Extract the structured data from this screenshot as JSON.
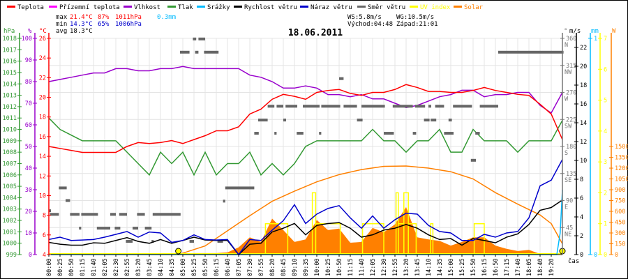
{
  "legend": [
    {
      "label": "Teplota",
      "color": "#ff0000"
    },
    {
      "label": "Přízemní teplota",
      "color": "#ff00ff"
    },
    {
      "label": "Vlhkost",
      "color": "#9900cc"
    },
    {
      "label": "Tlak",
      "color": "#339933"
    },
    {
      "label": "Srážky",
      "color": "#00bbff"
    },
    {
      "label": "Rychlost větru",
      "color": "#000000"
    },
    {
      "label": "Náraz větru",
      "color": "#0000cc"
    },
    {
      "label": "Směr větru",
      "color": "#666666"
    },
    {
      "label": "UV index",
      "color": "#ffff00"
    },
    {
      "label": "Solar",
      "color": "#ff8000"
    }
  ],
  "stats": {
    "max_label": "max",
    "max_temp": "21.4°C",
    "max_hum": "87%",
    "max_press": "1011hPa",
    "max_rain": "0.3mm",
    "min_label": "min",
    "min_temp": "14.3°C",
    "min_hum": "65%",
    "min_press": "1006hPa",
    "avg_label": "avg",
    "avg_temp": "18.3°C",
    "ws": "WS:5.8m/s",
    "wg": "WG:10.5m/s",
    "sunrise": "Východ:04:48",
    "sunset": "Západ:21:01"
  },
  "chart_data": {
    "type": "line",
    "title": "18.06.2011",
    "xlabel": "čas",
    "x_ticks": [
      "00:00",
      "00:25",
      "00:50",
      "01:15",
      "01:40",
      "02:05",
      "02:30",
      "02:55",
      "03:20",
      "03:45",
      "04:10",
      "04:35",
      "05:00",
      "05:25",
      "05:50",
      "06:15",
      "06:40",
      "07:05",
      "07:30",
      "07:55",
      "08:20",
      "08:45",
      "09:10",
      "09:35",
      "10:00",
      "10:25",
      "10:50",
      "11:15",
      "11:40",
      "12:05",
      "12:30",
      "12:55",
      "13:20",
      "13:45",
      "14:10",
      "14:35",
      "15:00",
      "15:25",
      "15:50",
      "16:15",
      "16:50",
      "17:15",
      "17:40",
      "18:05",
      "18:40",
      "19:20"
    ],
    "grid": true,
    "axes": {
      "pressure": {
        "unit": "hPa",
        "range": [
          999,
          1018
        ],
        "ticks": [
          999,
          1000,
          1001,
          1002,
          1003,
          1004,
          1005,
          1006,
          1007,
          1008,
          1009,
          1010,
          1011,
          1012,
          1013,
          1014,
          1015,
          1016,
          1017,
          1018
        ]
      },
      "humidity": {
        "unit": "%",
        "range": [
          0,
          100
        ],
        "ticks": [
          0,
          10,
          20,
          30,
          40,
          50,
          60,
          70,
          80,
          90,
          100
        ]
      },
      "temperature": {
        "unit": "°C",
        "range": [
          4,
          26
        ],
        "ticks": [
          4,
          6,
          8,
          10,
          12,
          14,
          16,
          18,
          20,
          22,
          24,
          26
        ]
      },
      "direction": {
        "unit": "°",
        "range": [
          0,
          360
        ],
        "ticks": [
          {
            "value": 45,
            "label": "45",
            "dir": "NE"
          },
          {
            "value": 90,
            "label": "90",
            "dir": "E"
          },
          {
            "value": 135,
            "label": "135",
            "dir": "SE"
          },
          {
            "value": 180,
            "label": "180",
            "dir": "S"
          },
          {
            "value": 225,
            "label": "225",
            "dir": "SW"
          },
          {
            "value": 270,
            "label": "270",
            "dir": "W"
          },
          {
            "value": 315,
            "label": "315",
            "dir": "NW"
          },
          {
            "value": 360,
            "label": "360",
            "dir": "N"
          }
        ]
      },
      "wind": {
        "unit": "m/s",
        "range": [
          0,
          23
        ],
        "ticks": [
          0,
          2,
          4,
          6,
          8,
          10,
          12,
          14,
          16,
          18,
          20,
          22
        ]
      },
      "rain": {
        "unit": "mm",
        "range": [
          0,
          1
        ],
        "ticks": [
          0,
          1
        ]
      },
      "uv": {
        "unit": "",
        "range": [
          0,
          7
        ],
        "ticks": [
          0,
          1,
          2,
          3,
          4,
          5,
          6,
          7
        ]
      },
      "solar": {
        "unit": "W",
        "range": [
          0,
          1500
        ],
        "ticks": [
          0,
          150,
          300,
          450,
          600,
          750,
          900,
          1050,
          1200,
          1350,
          1500
        ]
      }
    },
    "series": {
      "temperature": [
        15.0,
        14.8,
        14.6,
        14.4,
        14.4,
        14.4,
        14.4,
        15.0,
        15.4,
        15.3,
        15.4,
        15.6,
        15.3,
        15.7,
        16.1,
        16.6,
        16.6,
        17.0,
        18.3,
        18.8,
        19.8,
        20.3,
        20.1,
        19.8,
        20.5,
        20.7,
        20.8,
        20.4,
        20.2,
        20.5,
        20.5,
        20.8,
        21.3,
        21.0,
        20.6,
        20.6,
        20.5,
        20.5,
        20.7,
        21.0,
        20.7,
        20.5,
        20.3,
        20.2,
        19.3,
        18.3,
        15.7
      ],
      "humidity": [
        80,
        81,
        82,
        83,
        84,
        84,
        86,
        86,
        85,
        85,
        86,
        86,
        87,
        86,
        86,
        86,
        86,
        86,
        83,
        82,
        80,
        77,
        77,
        78,
        77,
        74,
        74,
        73,
        74,
        72,
        72,
        70,
        68,
        69,
        71,
        73,
        74,
        76,
        76,
        73,
        74,
        74,
        75,
        75,
        69,
        65.5,
        75
      ],
      "pressure": [
        1011,
        1010,
        1009.5,
        1009,
        1009,
        1009,
        1009,
        1008,
        1007,
        1006,
        1008,
        1007,
        1008,
        1006,
        1008,
        1006,
        1007,
        1007,
        1008,
        1006,
        1007,
        1006,
        1007,
        1008.5,
        1009,
        1009,
        1009,
        1009,
        1009,
        1010,
        1009,
        1009,
        1008,
        1009,
        1009,
        1010,
        1008,
        1008,
        1010,
        1009,
        1009,
        1009,
        1008,
        1009,
        1009,
        1009,
        1010.8
      ],
      "wind_speed": [
        1.3,
        1.1,
        1.0,
        1.0,
        1.25,
        1.2,
        1.5,
        1.8,
        1.4,
        1.2,
        1.6,
        1.2,
        1.5,
        1.85,
        1.55,
        1.5,
        1.5,
        0,
        1.1,
        1.2,
        2.4,
        2.8,
        3.3,
        2.1,
        3.1,
        3.3,
        3.4,
        2.8,
        1.85,
        2.1,
        2.6,
        2.8,
        3.2,
        2.8,
        2.1,
        1.6,
        1.7,
        1.0,
        1.7,
        1.5,
        1.25,
        1.85,
        2.2,
        3.2,
        4.7,
        5.0,
        5.8
      ],
      "wind_gust": [
        1.6,
        1.85,
        1.5,
        1.55,
        1.6,
        1.85,
        2.15,
        2.45,
        1.85,
        2.4,
        2.3,
        1.3,
        1.5,
        2.1,
        1.6,
        1.55,
        1.6,
        0,
        1.6,
        1.5,
        2.6,
        3.6,
        5.3,
        3.3,
        4.3,
        4.9,
        5.2,
        3.9,
        2.8,
        4.1,
        2.8,
        3.7,
        4.4,
        4.3,
        3.1,
        2.45,
        2.3,
        1.5,
        1.5,
        2.15,
        1.85,
        2.3,
        2.45,
        3.9,
        7.3,
        7.9,
        10.1
      ],
      "solar": [
        0,
        0,
        0,
        0,
        0,
        0,
        0,
        0,
        0,
        0,
        0,
        0,
        0,
        20,
        20,
        20,
        30,
        100,
        240,
        175,
        500,
        340,
        175,
        210,
        480,
        340,
        360,
        165,
        175,
        370,
        310,
        420,
        660,
        240,
        210,
        190,
        125,
        175,
        240,
        240,
        125,
        80,
        50,
        65,
        10,
        20,
        0
      ],
      "solar_theoretical": [
        [
          11.6,
          0
        ],
        [
          12,
          20
        ],
        [
          14,
          120
        ],
        [
          16,
          330
        ],
        [
          18,
          540
        ],
        [
          20,
          740
        ],
        [
          22,
          880
        ],
        [
          24,
          1010
        ],
        [
          26,
          1110
        ],
        [
          28,
          1180
        ],
        [
          30,
          1225
        ],
        [
          32,
          1230
        ],
        [
          34,
          1200
        ],
        [
          36,
          1150
        ],
        [
          38,
          1050
        ],
        [
          40,
          860
        ],
        [
          42,
          700
        ],
        [
          44,
          550
        ],
        [
          45,
          430
        ],
        [
          46,
          150
        ]
      ],
      "rain": [
        [
          0,
          0
        ],
        [
          45.5,
          0
        ],
        [
          45.8,
          0.1
        ],
        [
          46,
          0.3
        ]
      ],
      "uv_segments": [
        [
          19.4,
          21.4,
          1
        ],
        [
          23.6,
          23.9,
          2
        ],
        [
          23.9,
          26.1,
          1
        ],
        [
          28.1,
          30.0,
          1
        ],
        [
          31.1,
          31.3,
          2
        ],
        [
          31.3,
          31.8,
          1
        ],
        [
          31.8,
          32.2,
          2
        ],
        [
          32.2,
          32.9,
          1
        ],
        [
          34.2,
          34.4,
          1
        ],
        [
          38.1,
          39.0,
          1
        ]
      ],
      "wind_direction_segments": [
        [
          0.9,
          1.6,
          111
        ],
        [
          15.8,
          18.4,
          111
        ],
        [
          1.5,
          1.9,
          90
        ],
        [
          15.6,
          15.8,
          89
        ],
        [
          0,
          0.1,
          73
        ],
        [
          0.1,
          0.9,
          67
        ],
        [
          1.9,
          2.75,
          67
        ],
        [
          2.9,
          4.4,
          67
        ],
        [
          5.5,
          6.0,
          67
        ],
        [
          6.3,
          7.0,
          67
        ],
        [
          7.9,
          8.6,
          67
        ],
        [
          9.3,
          11.8,
          67
        ],
        [
          2.7,
          2.9,
          44
        ],
        [
          4.3,
          5.5,
          44
        ],
        [
          5.9,
          6.4,
          44
        ],
        [
          7.5,
          8.0,
          44
        ],
        [
          8.6,
          9.2,
          44
        ],
        [
          6.9,
          7.5,
          22
        ],
        [
          9.2,
          9.3,
          22
        ],
        [
          12.6,
          13.0,
          22
        ],
        [
          15.1,
          15.6,
          22
        ],
        [
          12.9,
          13.2,
          359
        ],
        [
          13.4,
          14.0,
          359
        ],
        [
          11.75,
          12.6,
          337
        ],
        [
          13.1,
          13.4,
          337
        ],
        [
          13.9,
          15.2,
          337
        ],
        [
          40.25,
          46.1,
          337
        ],
        [
          19.6,
          20.2,
          247
        ],
        [
          20.4,
          21.0,
          247
        ],
        [
          21.2,
          22.25,
          247
        ],
        [
          22.75,
          24.25,
          247
        ],
        [
          24.4,
          26.1,
          247
        ],
        [
          26.4,
          27.6,
          247
        ],
        [
          28.0,
          30.1,
          247
        ],
        [
          30.8,
          32.6,
          247
        ],
        [
          32.8,
          33.7,
          247
        ],
        [
          34.0,
          34.25,
          247
        ],
        [
          34.6,
          35.4,
          247
        ],
        [
          36.2,
          37.9,
          247
        ],
        [
          38.6,
          40.25,
          247
        ],
        [
          18.75,
          19.6,
          224
        ],
        [
          21.0,
          21.25,
          224
        ],
        [
          27.6,
          28.1,
          224
        ],
        [
          33.6,
          34.1,
          224
        ],
        [
          34.2,
          34.7,
          224
        ],
        [
          35.8,
          36.1,
          224
        ],
        [
          18.4,
          18.8,
          202
        ],
        [
          20.2,
          20.4,
          202
        ],
        [
          22.2,
          22.8,
          202
        ],
        [
          24.2,
          24.4,
          202
        ],
        [
          30.0,
          30.9,
          202
        ],
        [
          32.6,
          32.9,
          202
        ],
        [
          35.4,
          36.25,
          202
        ],
        [
          38.2,
          38.6,
          202
        ],
        [
          37.8,
          38.25,
          157
        ],
        [
          26.0,
          26.4,
          293
        ]
      ],
      "sun_markers": [
        11.6,
        46
      ]
    }
  }
}
